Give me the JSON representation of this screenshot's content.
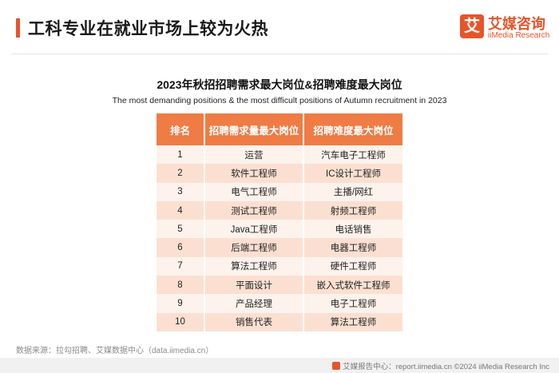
{
  "header": {
    "title": "工科专业在就业市场上较为火热",
    "logo_mark": "艾",
    "logo_cn": "艾媒咨询",
    "logo_en": "iiMedia Research",
    "accent_color": "#e8542a"
  },
  "chart": {
    "title_cn": "2023年秋招招聘需求最大岗位&招聘难度最大岗位",
    "title_en": "The most demanding positions & the most difficult positions of Autumn recruitment in 2023"
  },
  "table": {
    "headers": [
      "排名",
      "招聘需求量最大岗位",
      "招聘难度最大岗位"
    ],
    "rows": [
      [
        "1",
        "运营",
        "汽车电子工程师"
      ],
      [
        "2",
        "软件工程师",
        "IC设计工程师"
      ],
      [
        "3",
        "电气工程师",
        "主播/网红"
      ],
      [
        "4",
        "测试工程师",
        "射频工程师"
      ],
      [
        "5",
        "Java工程师",
        "电话销售"
      ],
      [
        "6",
        "后端工程师",
        "电器工程师"
      ],
      [
        "7",
        "算法工程师",
        "硬件工程师"
      ],
      [
        "8",
        "平面设计",
        "嵌入式软件工程师"
      ],
      [
        "9",
        "产品经理",
        "电子工程师"
      ],
      [
        "10",
        "销售代表",
        "算法工程师"
      ]
    ],
    "header_color": "#ef7c45",
    "row_colors": [
      "#fdf2ec",
      "#fbe0d1"
    ]
  },
  "footer": {
    "source": "数据来源：拉勾招聘、艾媒数据中心（data.iimedia.cn）",
    "copyright": "艾媒报告中心：report.iimedia.cn    ©2024  iiMedia Research  Inc"
  }
}
